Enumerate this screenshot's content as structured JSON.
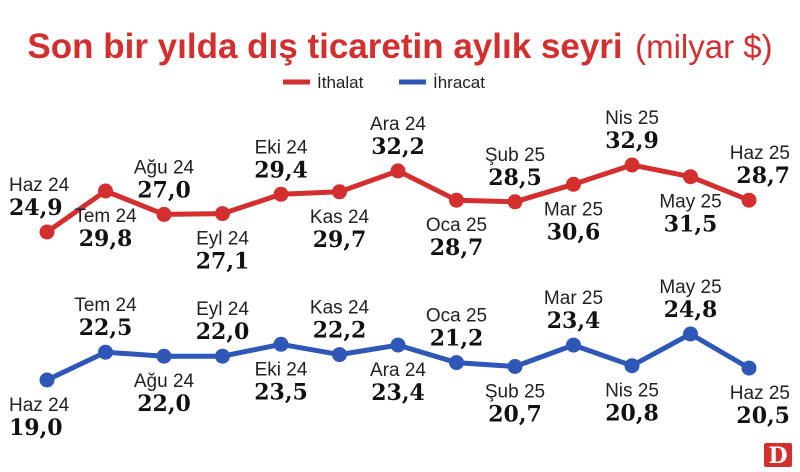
{
  "colors": {
    "import": "#D32F2F",
    "export": "#2E57B8",
    "title": "#D32F2F",
    "logo_bg": "#D32F2F"
  },
  "chart_data": {
    "type": "line",
    "title": "Son bir yılda dış ticaretin aylık seyri",
    "title_unit": "(milyar $)",
    "legend": {
      "position": "top-center"
    },
    "x": [
      "Haz 24",
      "Tem 24",
      "Ağu 24",
      "Eyl 24",
      "Eki 24",
      "Kas 24",
      "Ara 24",
      "Oca 25",
      "Şub 25",
      "Mar 25",
      "Nis 25",
      "May 25",
      "Haz 25"
    ],
    "series": [
      {
        "name": "İthalat",
        "color": "#D32F2F",
        "values": [
          24.9,
          29.8,
          27.0,
          27.1,
          29.4,
          29.7,
          32.2,
          28.7,
          28.5,
          30.6,
          32.9,
          31.5,
          28.7
        ],
        "value_labels": [
          "24,9",
          "29,8",
          "27,0",
          "27,1",
          "29,4",
          "29,7",
          "32,2",
          "28,7",
          "28,5",
          "30,6",
          "32,9",
          "31,5",
          "28,7"
        ],
        "x_labels": [
          "Haz 24",
          "Tem 24",
          "Ağu 24",
          "Eyl 24",
          "Eki 24",
          "Kas 24",
          "Ara 24",
          "Oca 25",
          "Şub 25",
          "Mar 25",
          "Nis 25",
          "May 25",
          "Haz 25"
        ]
      },
      {
        "name": "İhracat",
        "color": "#2E57B8",
        "values": [
          19.0,
          22.5,
          22.0,
          22.0,
          23.5,
          22.2,
          23.4,
          21.2,
          20.7,
          23.4,
          20.8,
          24.8,
          20.5
        ],
        "value_labels": [
          "19,0",
          "22,5",
          "22,0",
          "22,0",
          "23,5",
          "22,2",
          "23,4",
          "21,2",
          "20,7",
          "23,4",
          "20,8",
          "24,8",
          "20,5"
        ],
        "x_labels": [
          "Haz 24",
          "Tem 24",
          "Ağu 24",
          "Eyl 24",
          "Eki 24",
          "Kas 24",
          "Ara 24",
          "Oca 25",
          "Şub 25",
          "Mar 25",
          "Nis 25",
          "May 25",
          "Haz 25"
        ]
      }
    ]
  },
  "logo": {
    "text": "D"
  }
}
